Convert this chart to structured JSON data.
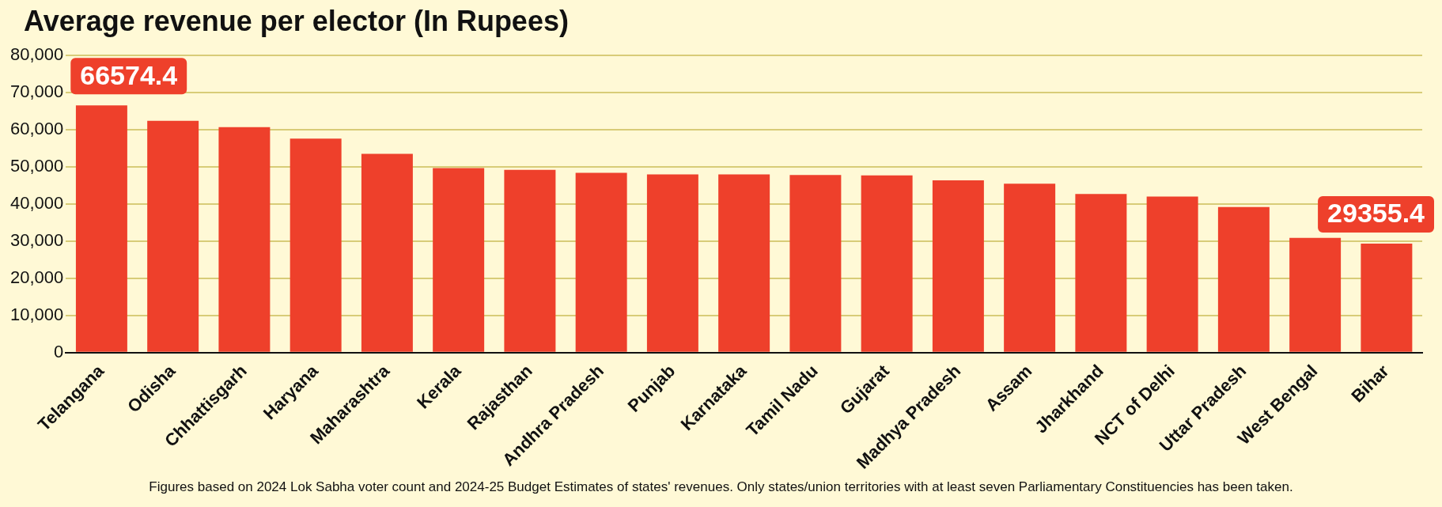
{
  "chart_data": {
    "type": "bar",
    "title": "Average revenue per elector (In Rupees)",
    "categories": [
      "Telangana",
      "Odisha",
      "Chhattisgarh",
      "Haryana",
      "Maharashtra",
      "Kerala",
      "Rajasthan",
      "Andhra Pradesh",
      "Punjab",
      "Karnataka",
      "Tamil Nadu",
      "Gujarat",
      "Madhya Pradesh",
      "Assam",
      "Jharkhand",
      "NCT of Delhi",
      "Uttar Pradesh",
      "West Bengal",
      "Bihar"
    ],
    "values": [
      66574.4,
      62400,
      60700,
      57600,
      53500,
      49700,
      49200,
      48400,
      48000,
      48000,
      47800,
      47700,
      46400,
      45500,
      42700,
      42000,
      39200,
      30900,
      29355.4
    ],
    "value_labels": [
      "66574.4",
      null,
      null,
      null,
      null,
      null,
      null,
      null,
      null,
      null,
      null,
      null,
      null,
      null,
      null,
      null,
      null,
      null,
      "29355.4"
    ],
    "color": "#ee402b",
    "ylim": [
      0,
      80000
    ],
    "yticks": [
      {
        "value": 0,
        "label": "0"
      },
      {
        "value": 10000,
        "label": "10,000"
      },
      {
        "value": 20000,
        "label": "20,000"
      },
      {
        "value": 30000,
        "label": "30,000"
      },
      {
        "value": 40000,
        "label": "40,000"
      },
      {
        "value": 50000,
        "label": "50,000"
      },
      {
        "value": 60000,
        "label": "60,000"
      },
      {
        "value": 70000,
        "label": "70,000"
      },
      {
        "value": 80000,
        "label": "80,000"
      }
    ],
    "grid": "y",
    "annotations": [
      "Figures based on 2024 Lok Sabha voter count and 2024-25 Budget Estimates of states' revenues. Only states/union territories with at least seven Parliamentary Constituencies has been taken."
    ]
  }
}
